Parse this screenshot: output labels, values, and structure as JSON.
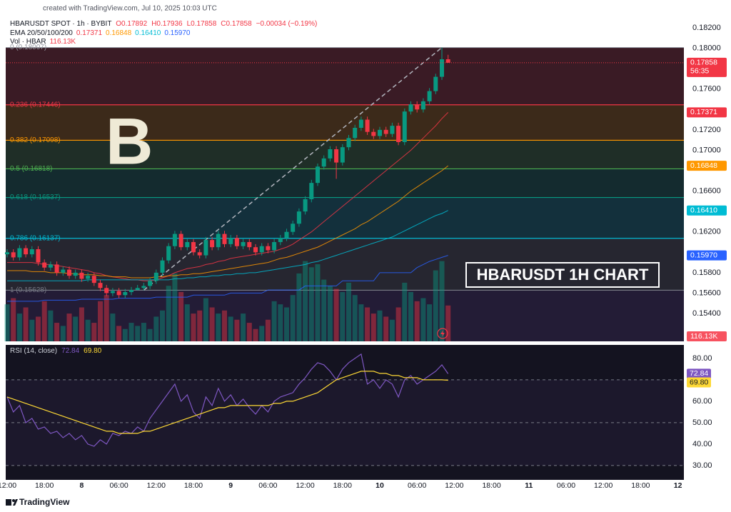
{
  "header": {
    "created": "created with TradingView.com, Jul 10, 2025 10:03 UTC"
  },
  "footer": {
    "brand": "TradingView"
  },
  "chart_data": [
    {
      "type": "candlestick",
      "title": "HBARUSDT SPOT · 1h · BYBIT",
      "ohlc_labels": [
        "O0.17892",
        "H0.17936",
        "L0.17858",
        "C0.17858"
      ],
      "change": "−0.00034 (−0.19%)",
      "countdown": "56:35",
      "logo": "B",
      "banner": "HBARUSDT 1H CHART",
      "up_color": "#089981",
      "down_color": "#f23645",
      "open": [
        0.1598,
        0.16,
        0.1595,
        0.1604,
        0.1598,
        0.1603,
        0.159,
        0.1585,
        0.1588,
        0.158,
        0.1583,
        0.1577,
        0.158,
        0.1574,
        0.1577,
        0.157,
        0.1565,
        0.156,
        0.1562,
        0.1558,
        0.1561,
        0.1563,
        0.1565,
        0.1567,
        0.1572,
        0.158,
        0.1592,
        0.1606,
        0.1618,
        0.1605,
        0.161,
        0.16,
        0.1597,
        0.1612,
        0.1605,
        0.1618,
        0.1608,
        0.1614,
        0.1606,
        0.161,
        0.1605,
        0.16,
        0.1606,
        0.1602,
        0.161,
        0.1614,
        0.162,
        0.1628,
        0.164,
        0.1652,
        0.1668,
        0.1684,
        0.1692,
        0.1701,
        0.1688,
        0.1703,
        0.1712,
        0.1722,
        0.173,
        0.1718,
        0.1714,
        0.172,
        0.1716,
        0.1724,
        0.1708,
        0.1738,
        0.1745,
        0.174,
        0.1748,
        0.1758,
        0.1772,
        0.17892
      ],
      "high": [
        0.1603,
        0.1603,
        0.1607,
        0.1607,
        0.1606,
        0.1606,
        0.1593,
        0.1591,
        0.1591,
        0.1586,
        0.1586,
        0.1583,
        0.1583,
        0.158,
        0.158,
        0.1573,
        0.1568,
        0.1565,
        0.1565,
        0.1564,
        0.1566,
        0.1568,
        0.157,
        0.1575,
        0.1583,
        0.1595,
        0.1609,
        0.1621,
        0.1621,
        0.1613,
        0.1613,
        0.1603,
        0.1615,
        0.1615,
        0.1621,
        0.1621,
        0.1617,
        0.1617,
        0.1613,
        0.1613,
        0.1608,
        0.1609,
        0.1609,
        0.1613,
        0.1617,
        0.1623,
        0.1631,
        0.1643,
        0.1655,
        0.1671,
        0.1687,
        0.1695,
        0.1704,
        0.1704,
        0.1706,
        0.1715,
        0.1725,
        0.1733,
        0.1733,
        0.1721,
        0.1723,
        0.1723,
        0.1727,
        0.1727,
        0.1741,
        0.1748,
        0.1748,
        0.1751,
        0.1761,
        0.1775,
        0.18007,
        0.17936
      ],
      "low": [
        0.1595,
        0.1592,
        0.1592,
        0.1595,
        0.1595,
        0.1587,
        0.1582,
        0.1582,
        0.1577,
        0.1577,
        0.1574,
        0.1574,
        0.1571,
        0.1571,
        0.1567,
        0.1562,
        0.1557,
        0.1557,
        0.1555,
        0.1555,
        0.1558,
        0.1563,
        0.15628,
        0.1564,
        0.1569,
        0.1577,
        0.1589,
        0.1603,
        0.1602,
        0.1602,
        0.1597,
        0.1594,
        0.1594,
        0.1602,
        0.1602,
        0.1605,
        0.1605,
        0.1603,
        0.1603,
        0.1602,
        0.1597,
        0.1597,
        0.1599,
        0.1599,
        0.1607,
        0.1611,
        0.1617,
        0.1625,
        0.1637,
        0.1649,
        0.1665,
        0.1681,
        0.1689,
        0.1672,
        0.1685,
        0.17,
        0.1709,
        0.1719,
        0.1715,
        0.1711,
        0.1711,
        0.1713,
        0.1713,
        0.1705,
        0.1705,
        0.1735,
        0.1737,
        0.1737,
        0.1745,
        0.1755,
        0.1769,
        0.17858
      ],
      "close": [
        0.16,
        0.1595,
        0.1604,
        0.1598,
        0.1603,
        0.159,
        0.1585,
        0.1588,
        0.158,
        0.1583,
        0.1577,
        0.158,
        0.1574,
        0.1577,
        0.157,
        0.1565,
        0.156,
        0.1562,
        0.1558,
        0.1561,
        0.1563,
        0.1565,
        0.1567,
        0.1572,
        0.158,
        0.1592,
        0.1606,
        0.1618,
        0.1605,
        0.161,
        0.16,
        0.1597,
        0.1612,
        0.1605,
        0.1618,
        0.1608,
        0.1614,
        0.1606,
        0.161,
        0.1605,
        0.16,
        0.1606,
        0.1602,
        0.161,
        0.1614,
        0.162,
        0.1628,
        0.164,
        0.1652,
        0.1668,
        0.1684,
        0.1692,
        0.1701,
        0.1688,
        0.1703,
        0.1712,
        0.1722,
        0.173,
        0.1718,
        0.1714,
        0.172,
        0.1716,
        0.1724,
        0.1708,
        0.1738,
        0.1745,
        0.174,
        0.1748,
        0.1758,
        0.1772,
        0.17892,
        0.17858
      ],
      "ylim": [
        0.15127,
        0.18333
      ],
      "yticks": [
        {
          "value": 0.182,
          "label": "0.18200"
        },
        {
          "value": 0.18,
          "label": "0.18000"
        },
        {
          "value": 0.176,
          "label": "0.17600"
        },
        {
          "value": 0.172,
          "label": "0.17200"
        },
        {
          "value": 0.17,
          "label": "0.17000"
        },
        {
          "value": 0.166,
          "label": "0.16600"
        },
        {
          "value": 0.162,
          "label": "0.16200"
        },
        {
          "value": 0.158,
          "label": "0.15800"
        },
        {
          "value": 0.156,
          "label": "0.15600"
        },
        {
          "value": 0.154,
          "label": "0.15400"
        }
      ],
      "xticks": [
        "12:00",
        "18:00",
        "8",
        "06:00",
        "12:00",
        "18:00",
        "9",
        "06:00",
        "12:00",
        "18:00",
        "10",
        "06:00",
        "12:00",
        "18:00",
        "11",
        "06:00",
        "12:00",
        "18:00",
        "12"
      ],
      "fib_levels": [
        {
          "label": "0 (0.18007)",
          "value": 0.18007,
          "color": "#9598a1"
        },
        {
          "label": "0.236 (0.17446)",
          "value": 0.17446,
          "color": "#f23645"
        },
        {
          "label": "0.382 (0.17098)",
          "value": 0.17098,
          "color": "#ff9800"
        },
        {
          "label": "0.5 (0.16818)",
          "value": 0.16818,
          "color": "#4caf50"
        },
        {
          "label": "0.618 (0.16537)",
          "value": 0.16537,
          "color": "#089981"
        },
        {
          "label": "0.786 (0.16137)",
          "value": 0.16137,
          "color": "#00bcd4"
        },
        {
          "label": "1 (0.15628)",
          "value": 0.15628,
          "color": "#787b86"
        }
      ],
      "ema_title": "EMA 20/50/100/200",
      "ema": [
        {
          "color": "#f23645",
          "last_value_label": "0.17371",
          "values": [
            0.159,
            0.159,
            0.159,
            0.159,
            0.159,
            0.1589,
            0.1588,
            0.1588,
            0.1587,
            0.1586,
            0.1585,
            0.1584,
            0.1583,
            0.1582,
            0.158,
            0.1579,
            0.1577,
            0.1576,
            0.1575,
            0.1574,
            0.1573,
            0.1573,
            0.1572,
            0.1572,
            0.1573,
            0.1575,
            0.1577,
            0.158,
            0.1582,
            0.1584,
            0.1585,
            0.1586,
            0.1588,
            0.1589,
            0.1591,
            0.1592,
            0.1594,
            0.1595,
            0.1596,
            0.1597,
            0.1598,
            0.1599,
            0.16,
            0.1601,
            0.1603,
            0.1605,
            0.1608,
            0.1612,
            0.1616,
            0.162,
            0.1625,
            0.163,
            0.1635,
            0.164,
            0.1645,
            0.165,
            0.1655,
            0.166,
            0.1665,
            0.167,
            0.1675,
            0.168,
            0.1685,
            0.169,
            0.1695,
            0.17,
            0.1706,
            0.1712,
            0.1718,
            0.1724,
            0.1731,
            0.17371
          ]
        },
        {
          "color": "#ff9800",
          "last_value_label": "0.16848",
          "values": [
            0.1582,
            0.1582,
            0.1582,
            0.1582,
            0.1581,
            0.1581,
            0.1581,
            0.158,
            0.158,
            0.158,
            0.1579,
            0.1579,
            0.1578,
            0.1578,
            0.1578,
            0.1577,
            0.1577,
            0.1576,
            0.1576,
            0.1576,
            0.1575,
            0.1575,
            0.1575,
            0.1575,
            0.1576,
            0.1576,
            0.1577,
            0.1577,
            0.1578,
            0.1578,
            0.1579,
            0.1579,
            0.158,
            0.1581,
            0.1582,
            0.1583,
            0.1584,
            0.1585,
            0.1586,
            0.1587,
            0.1588,
            0.1589,
            0.159,
            0.1592,
            0.1594,
            0.1595,
            0.1597,
            0.1599,
            0.1601,
            0.1603,
            0.1605,
            0.1608,
            0.1611,
            0.1614,
            0.1617,
            0.162,
            0.1623,
            0.1627,
            0.163,
            0.1634,
            0.1638,
            0.1642,
            0.1646,
            0.165,
            0.1655,
            0.166,
            0.1664,
            0.1668,
            0.1672,
            0.1676,
            0.168,
            0.16848
          ]
        },
        {
          "color": "#00bcd4",
          "last_value_label": "0.16410",
          "values": [
            0.1572,
            0.1572,
            0.1572,
            0.1572,
            0.1572,
            0.1572,
            0.1572,
            0.1572,
            0.1572,
            0.1572,
            0.1572,
            0.1572,
            0.1572,
            0.1573,
            0.1573,
            0.1573,
            0.1573,
            0.1573,
            0.1573,
            0.1573,
            0.1573,
            0.1573,
            0.1573,
            0.1573,
            0.1573,
            0.1573,
            0.1573,
            0.1574,
            0.1574,
            0.1575,
            0.1575,
            0.1576,
            0.1576,
            0.1577,
            0.1577,
            0.1578,
            0.1578,
            0.1579,
            0.1579,
            0.158,
            0.158,
            0.1581,
            0.1582,
            0.1583,
            0.1584,
            0.1585,
            0.1586,
            0.1587,
            0.1588,
            0.159,
            0.1591,
            0.1593,
            0.1595,
            0.1597,
            0.1599,
            0.1601,
            0.1603,
            0.1605,
            0.1607,
            0.1609,
            0.1611,
            0.1613,
            0.1615,
            0.1618,
            0.1621,
            0.1624,
            0.1627,
            0.163,
            0.1633,
            0.1636,
            0.1638,
            0.1641
          ]
        },
        {
          "color": "#2962ff",
          "last_value_label": "0.15970",
          "values": [
            0.1552,
            0.1552,
            0.1552,
            0.1552,
            0.1552,
            0.1552,
            0.1553,
            0.1553,
            0.1553,
            0.1553,
            0.1553,
            0.1553,
            0.1554,
            0.1554,
            0.1554,
            0.1554,
            0.1554,
            0.1554,
            0.1555,
            0.1555,
            0.1555,
            0.1555,
            0.1555,
            0.1555,
            0.1556,
            0.1556,
            0.1556,
            0.1556,
            0.1556,
            0.1556,
            0.1558,
            0.1558,
            0.1558,
            0.1558,
            0.1558,
            0.1558,
            0.156,
            0.156,
            0.156,
            0.156,
            0.156,
            0.156,
            0.1563,
            0.1563,
            0.1563,
            0.1563,
            0.1563,
            0.1563,
            0.1567,
            0.1567,
            0.1567,
            0.1567,
            0.1567,
            0.1567,
            0.1572,
            0.1572,
            0.1572,
            0.1572,
            0.1572,
            0.1572,
            0.158,
            0.158,
            0.158,
            0.158,
            0.158,
            0.158,
            0.1585,
            0.1588,
            0.1591,
            0.1593,
            0.1595,
            0.1597
          ]
        }
      ],
      "volume": {
        "name": "Vol · HBAR",
        "last_value_label": "116.13K",
        "ylim": [
          0,
          1060
        ],
        "values": [
          120,
          140,
          90,
          110,
          70,
          80,
          130,
          100,
          60,
          50,
          90,
          80,
          110,
          70,
          60,
          130,
          150,
          90,
          50,
          40,
          60,
          50,
          60,
          40,
          80,
          100,
          180,
          220,
          160,
          120,
          90,
          100,
          140,
          110,
          90,
          100,
          80,
          70,
          90,
          60,
          40,
          50,
          70,
          130,
          120,
          110,
          150,
          220,
          260,
          240,
          250,
          200,
          180,
          170,
          160,
          190,
          150,
          120,
          110,
          90,
          100,
          80,
          70,
          110,
          190,
          160,
          130,
          140,
          120,
          230,
          260,
          116.13
        ]
      }
    },
    {
      "type": "line",
      "title": "RSI (14, close)",
      "ylim": [
        23.3,
        86.3
      ],
      "yticks": [
        {
          "value": 80,
          "label": "80.00"
        },
        {
          "value": 60,
          "label": "60.00"
        },
        {
          "value": 50,
          "label": "50.00"
        },
        {
          "value": 40,
          "label": "40.00"
        },
        {
          "value": 30,
          "label": "30.00"
        }
      ],
      "hlines": [
        70,
        50,
        30
      ],
      "series": [
        {
          "color": "#7e57c2",
          "values": [
            62,
            55,
            58,
            50,
            52,
            47,
            48,
            45,
            46,
            43,
            45,
            42,
            44,
            40,
            39,
            42,
            40,
            45,
            44,
            46,
            45,
            48,
            46,
            52,
            56,
            60,
            64,
            68,
            60,
            63,
            55,
            52,
            62,
            58,
            66,
            60,
            63,
            58,
            61,
            57,
            54,
            58,
            55,
            60,
            62,
            63,
            64,
            68,
            71,
            75,
            78,
            77,
            74,
            70,
            75,
            78,
            80,
            82,
            68,
            70,
            66,
            70,
            68,
            62,
            70,
            72,
            68,
            70,
            72,
            74,
            77,
            72.84
          ]
        },
        {
          "color": "#fdd835",
          "last_value_label": "69.80",
          "values": [
            62,
            61,
            60,
            59,
            58,
            57,
            56,
            55,
            54,
            53,
            52,
            51,
            50,
            49,
            48,
            47,
            46,
            46,
            45,
            45,
            45,
            45,
            46,
            46,
            47,
            48,
            49,
            50,
            51,
            52,
            53,
            54,
            55,
            56,
            57,
            57,
            58,
            58,
            58,
            58,
            58,
            58,
            58,
            59,
            59,
            60,
            60,
            61,
            62,
            63,
            64,
            66,
            68,
            70,
            71,
            72,
            73,
            74,
            74,
            74,
            73,
            73,
            72,
            72,
            71,
            71,
            71,
            70,
            70,
            70,
            70,
            69.8
          ]
        }
      ]
    }
  ]
}
